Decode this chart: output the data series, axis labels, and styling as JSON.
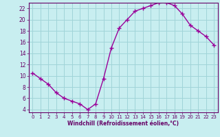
{
  "x": [
    0,
    1,
    2,
    3,
    4,
    5,
    6,
    7,
    8,
    9,
    10,
    11,
    12,
    13,
    14,
    15,
    16,
    17,
    18,
    19,
    20,
    21,
    22,
    23
  ],
  "y": [
    10.5,
    9.5,
    8.5,
    7.0,
    6.0,
    5.5,
    5.0,
    4.0,
    5.0,
    9.5,
    15.0,
    18.5,
    20.0,
    21.5,
    22.0,
    22.5,
    23.0,
    23.0,
    22.5,
    21.0,
    19.0,
    18.0,
    17.0,
    15.5
  ],
  "line_color": "#990099",
  "marker": "+",
  "markersize": 4,
  "linewidth": 1.0,
  "bg_color": "#c8eef0",
  "grid_color": "#a0d4d8",
  "xlabel": "Windchill (Refroidissement éolien,°C)",
  "xlim": [
    -0.5,
    23.5
  ],
  "ylim": [
    3.5,
    23.0
  ],
  "yticks": [
    4,
    6,
    8,
    10,
    12,
    14,
    16,
    18,
    20,
    22
  ],
  "xticks": [
    0,
    1,
    2,
    3,
    4,
    5,
    6,
    7,
    8,
    9,
    10,
    11,
    12,
    13,
    14,
    15,
    16,
    17,
    18,
    19,
    20,
    21,
    22,
    23
  ],
  "font_color": "#660066",
  "spine_color": "#660066",
  "tick_fontsize": 5.0,
  "xlabel_fontsize": 5.5,
  "xlabel_fontweight": "bold"
}
